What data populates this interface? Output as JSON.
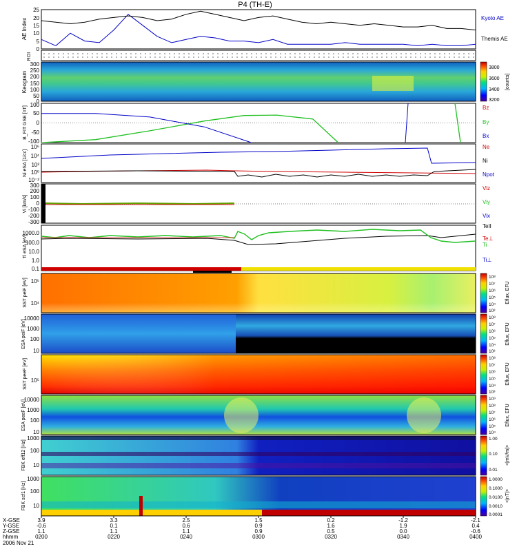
{
  "title": "P4 (TH-E)",
  "colors": {
    "black": "#000000",
    "blue": "#0000c8",
    "red": "#d00000",
    "green": "#20c020",
    "yellow": "#f0e000"
  },
  "chart_data": [
    {
      "type": "line",
      "panel": "ae",
      "ylabel": "AE Index",
      "ylim": [
        0,
        25
      ],
      "yticks": [
        "25",
        "20",
        "15",
        "10",
        "5",
        "0"
      ],
      "x": [
        200,
        204,
        208,
        212,
        216,
        220,
        224,
        228,
        232,
        236,
        240,
        244,
        248,
        252,
        256,
        300,
        304,
        308,
        312,
        316,
        320,
        324,
        328,
        332,
        336,
        340,
        344,
        348,
        352,
        356,
        400
      ],
      "series": [
        {
          "name": "Kyoto AE",
          "color": "blue",
          "values": [
            6,
            2,
            10,
            5,
            4,
            12,
            22,
            15,
            8,
            4,
            6,
            8,
            7,
            5,
            5,
            4,
            6,
            3,
            3,
            3,
            3,
            4,
            3,
            3,
            3,
            3,
            2,
            3,
            2,
            2,
            3
          ]
        },
        {
          "name": "Themis AE",
          "color": "black",
          "values": [
            18,
            17,
            16,
            17,
            19,
            20,
            21,
            20,
            18,
            19,
            22,
            24,
            22,
            20,
            18,
            20,
            21,
            19,
            17,
            16,
            17,
            16,
            15,
            16,
            15,
            14,
            14,
            15,
            13,
            13,
            12
          ]
        }
      ]
    },
    {
      "type": "dots",
      "panel": "roi",
      "ylabel": "ROI"
    },
    {
      "type": "heatmap",
      "panel": "keogram",
      "ylabel": "Keogram",
      "yticks": [
        "300",
        "250",
        "200",
        "150",
        "100",
        "50",
        "0"
      ],
      "colorbar": {
        "label": "[counts]",
        "ticks": [
          "3800",
          "3600",
          "3400",
          "3200"
        ]
      }
    },
    {
      "type": "line",
      "panel": "bfit",
      "ylabel": "B_FIT GSE [nT]",
      "ylim": [
        -100,
        100
      ],
      "yticks": [
        "100",
        "50",
        "0",
        "-50",
        "-100"
      ],
      "series": [
        {
          "name": "Bz",
          "color": "red",
          "values": []
        },
        {
          "name": "By",
          "color": "green",
          "points": [
            [
              200,
              -100
            ],
            [
              215,
              -85
            ],
            [
              230,
              -40
            ],
            [
              245,
              10
            ],
            [
              256,
              38
            ],
            [
              305,
              40
            ],
            [
              315,
              20
            ],
            [
              322,
              -100
            ]
          ]
        },
        {
          "name": "Bx",
          "color": "blue",
          "points": [
            [
              200,
              48
            ],
            [
              215,
              48
            ],
            [
              230,
              30
            ],
            [
              245,
              -20
            ],
            [
              258,
              -100
            ]
          ]
        }
      ]
    },
    {
      "type": "line",
      "panel": "ni",
      "ylabel": "Ni eSA [1/cc]",
      "yticks": [
        "10⁶",
        "10⁴",
        "10²",
        "10⁰",
        "10⁻²"
      ],
      "series": [
        {
          "name": "Ne",
          "color": "red"
        },
        {
          "name": "Ni",
          "color": "blue"
        },
        {
          "name": "Npot",
          "color": "black"
        }
      ]
    },
    {
      "type": "line",
      "panel": "vi",
      "ylabel": "Vi [km/s]",
      "ylim": [
        -300,
        300
      ],
      "yticks": [
        "300",
        "200",
        "100",
        "0",
        "-100",
        "-200",
        "-300"
      ],
      "series": [
        {
          "name": "Viz",
          "color": "red"
        },
        {
          "name": "Viy",
          "color": "green"
        },
        {
          "name": "Vix",
          "color": "blue"
        },
        {
          "name": "TeII",
          "color": "black"
        }
      ]
    },
    {
      "type": "line",
      "panel": "ti",
      "ylabel": "Ti eSA [eV]",
      "yticks": [
        "1000.0",
        "100.0",
        "10.0",
        "1.0",
        "0.1"
      ],
      "series": [
        {
          "name": "Te⊥",
          "color": "red"
        },
        {
          "name": "Ti",
          "color": "green"
        },
        {
          "name": "Ti⊥",
          "color": "blue"
        }
      ]
    },
    {
      "type": "heatmap",
      "panel": "sst_i",
      "ylabel": "SST peiF [eV]",
      "yticks": [
        "10⁵",
        "10⁴"
      ],
      "colorbar": {
        "label": "Eflux, EFU",
        "ticks": [
          "10⁸",
          "10⁷",
          "10⁶",
          "10⁵",
          "10⁴",
          "10³"
        ]
      }
    },
    {
      "type": "heatmap",
      "panel": "esa_i",
      "ylabel": "ESA peiF [eV]",
      "yticks": [
        "10000",
        "1000",
        "100",
        "10"
      ],
      "colorbar": {
        "label": "Eflux, EFU",
        "ticks": [
          "10⁸",
          "10⁷",
          "10⁶",
          "10⁵",
          "10⁴",
          "10³"
        ]
      }
    },
    {
      "type": "heatmap",
      "panel": "sst_e",
      "ylabel": "SST peeF [eV]",
      "yticks": [
        "10⁵"
      ],
      "colorbar": {
        "label": "Eflux, EFU",
        "ticks": [
          "10⁸",
          "10⁷",
          "10⁶",
          "10⁵",
          "10⁴",
          "10³"
        ]
      }
    },
    {
      "type": "heatmap",
      "panel": "esa_e",
      "ylabel": "ESA peeF [eV]",
      "yticks": [
        "10000",
        "1000",
        "100",
        "10"
      ],
      "colorbar": {
        "label": "Eflux, EFU",
        "ticks": [
          "10⁹",
          "10⁸",
          "10⁷",
          "10⁶",
          "10⁵",
          "10⁴"
        ]
      }
    },
    {
      "type": "heatmap",
      "panel": "fbk_e",
      "ylabel": "FBK eff12 [Hz]",
      "yticks": [
        "1000",
        "100",
        "10"
      ],
      "colorbar": {
        "label": "<|mV/m|>",
        "ticks": [
          "1.00",
          "0.10",
          "0.01"
        ]
      }
    },
    {
      "type": "heatmap",
      "panel": "fbk_b",
      "ylabel": "FBK scf1 [Hz]",
      "yticks": [
        "1000",
        "100",
        "10"
      ],
      "colorbar": {
        "label": "<|nT|>",
        "ticks": [
          "1.0000",
          "0.1000",
          "0.0100",
          "0.0010",
          "0.0001"
        ]
      }
    }
  ],
  "xaxis": {
    "rows": [
      {
        "label": "X-GSE",
        "values": [
          "3.9",
          "3.3",
          "2.5",
          "1.5",
          "0.2",
          "-1.2",
          "-2.1"
        ]
      },
      {
        "label": "Y-GSE",
        "values": [
          "-0.6",
          "0.1",
          "0.6",
          "0.9",
          "1.6",
          "1.9",
          "0.4"
        ]
      },
      {
        "label": "Z-GSE",
        "values": [
          "1.1",
          "1.1",
          "1.1",
          "0.9",
          "0.5",
          "0.0",
          "-0.6"
        ]
      },
      {
        "label": "hhmm",
        "values": [
          "0200",
          "0220",
          "0240",
          "0300",
          "0320",
          "0340",
          "0400"
        ]
      }
    ],
    "date": "2006 Nov 21"
  }
}
